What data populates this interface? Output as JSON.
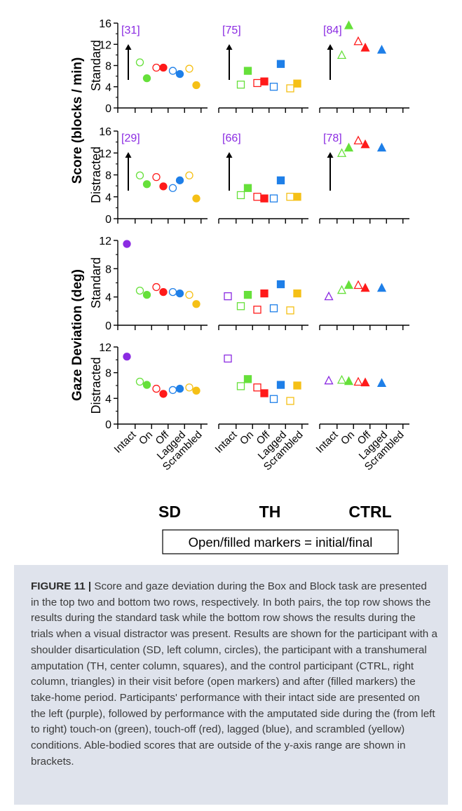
{
  "figure": {
    "left_title": "Score (blocks / min)",
    "left_title_lower": "Gaze Deviation (deg)",
    "group_labels": [
      "SD",
      "TH",
      "CTRL"
    ],
    "legend_text": "Open/filled markers = initial/final"
  },
  "caption": {
    "label": "FIGURE 11 |",
    "text": "Score and gaze deviation during the Box and Block task are presented in the top two and bottom two rows, respectively. In both pairs, the top row shows the results during the standard task while the bottom row shows the results during the trials when a visual distractor was present. Results are shown for the participant with a shoulder disarticulation (SD, left column, circles), the participant with a transhumeral amputation (TH, center column, squares), and the control participant (CTRL, right column, triangles) in their visit before (open markers) and after (filled markers) the take-home period. Participants' performance with their intact side are presented on the left (purple), followed by performance with the amputated side during the (from left to right) touch-on (green), touch-off (red), lagged (blue), and scrambled (yellow) conditions. Able-bodied scores that are outside of the y-axis range are shown in brackets."
  },
  "chart_data": {
    "type": "scatter",
    "categories": [
      "Intact",
      "On",
      "Off",
      "Lagged",
      "Scrambled"
    ],
    "groups": [
      {
        "name": "SD",
        "marker": "circle"
      },
      {
        "name": "TH",
        "marker": "square"
      },
      {
        "name": "CTRL",
        "marker": "triangle"
      }
    ],
    "colors": {
      "Intact": "#8b2be2",
      "On": "#66e03a",
      "Off": "#ff1a1a",
      "Lagged": "#1e7fe8",
      "Scrambled": "#f5c016"
    },
    "annotation_color": "#8b2be2",
    "fill_meaning": {
      "open": "initial",
      "filled": "final"
    },
    "panels": [
      {
        "ylabel": "Standard",
        "ylim": [
          0,
          16
        ],
        "yticks": [
          0,
          4,
          8,
          12,
          16
        ],
        "data": {
          "SD": {
            "Intact": {
              "annotation": "[31]"
            },
            "On": {
              "initial": 8.6,
              "final": 5.6
            },
            "Off": {
              "initial": 7.6,
              "final": 7.6
            },
            "Lagged": {
              "initial": 7.0,
              "final": 6.4
            },
            "Scrambled": {
              "initial": 7.4,
              "final": 4.3
            }
          },
          "TH": {
            "Intact": {
              "annotation": "[75]"
            },
            "On": {
              "initial": 4.4,
              "final": 7.0
            },
            "Off": {
              "initial": 4.7,
              "final": 5.0
            },
            "Lagged": {
              "initial": 4.0,
              "final": 8.3
            },
            "Scrambled": {
              "initial": 3.7,
              "final": 4.6
            }
          },
          "CTRL": {
            "Intact": {
              "annotation": "[84]"
            },
            "On": {
              "initial": 10.0,
              "final": 15.6
            },
            "Off": {
              "initial": 12.6,
              "final": 11.4
            },
            "Lagged": {
              "final": 11.0
            },
            "Scrambled": {}
          }
        }
      },
      {
        "ylabel": "Distracted",
        "ylim": [
          0,
          16
        ],
        "yticks": [
          0,
          4,
          8,
          12,
          16
        ],
        "data": {
          "SD": {
            "Intact": {
              "annotation": "[29]"
            },
            "On": {
              "initial": 7.9,
              "final": 6.3
            },
            "Off": {
              "initial": 7.6,
              "final": 5.9
            },
            "Lagged": {
              "initial": 5.6,
              "final": 7.0
            },
            "Scrambled": {
              "initial": 7.9,
              "final": 3.7
            }
          },
          "TH": {
            "Intact": {
              "annotation": "[66]"
            },
            "On": {
              "initial": 4.3,
              "final": 5.6
            },
            "Off": {
              "initial": 4.0,
              "final": 3.7
            },
            "Lagged": {
              "initial": 3.7,
              "final": 7.0
            },
            "Scrambled": {
              "initial": 4.0,
              "final": 4.0
            }
          },
          "CTRL": {
            "Intact": {
              "annotation": "[78]"
            },
            "On": {
              "initial": 12.0,
              "final": 13.0
            },
            "Off": {
              "initial": 14.3,
              "final": 13.6
            },
            "Lagged": {
              "final": 13.0
            },
            "Scrambled": {}
          }
        }
      },
      {
        "ylabel": "Standard",
        "ylim": [
          0,
          12
        ],
        "yticks": [
          0,
          4,
          8,
          12
        ],
        "data": {
          "SD": {
            "Intact": {
              "final": 11.5
            },
            "On": {
              "initial": 4.9,
              "final": 4.3
            },
            "Off": {
              "initial": 5.4,
              "final": 4.7
            },
            "Lagged": {
              "initial": 4.7,
              "final": 4.5
            },
            "Scrambled": {
              "initial": 4.3,
              "final": 3.0
            }
          },
          "TH": {
            "Intact": {
              "initial": 4.1
            },
            "On": {
              "initial": 2.7,
              "final": 4.3
            },
            "Off": {
              "initial": 2.2,
              "final": 4.5
            },
            "Lagged": {
              "initial": 2.4,
              "final": 5.8
            },
            "Scrambled": {
              "initial": 2.1,
              "final": 4.5
            }
          },
          "CTRL": {
            "Intact": {
              "initial": 4.1
            },
            "On": {
              "initial": 5.0,
              "final": 5.7
            },
            "Off": {
              "initial": 5.7,
              "final": 5.3
            },
            "Lagged": {
              "final": 5.3
            },
            "Scrambled": {}
          }
        }
      },
      {
        "ylabel": "Distracted",
        "ylim": [
          0,
          12
        ],
        "yticks": [
          0,
          4,
          8,
          12
        ],
        "data": {
          "SD": {
            "Intact": {
              "final": 10.5
            },
            "On": {
              "initial": 6.6,
              "final": 6.1
            },
            "Off": {
              "initial": 5.5,
              "final": 4.7
            },
            "Lagged": {
              "initial": 5.3,
              "final": 5.5
            },
            "Scrambled": {
              "initial": 5.7,
              "final": 5.2
            }
          },
          "TH": {
            "Intact": {
              "initial": 10.2
            },
            "On": {
              "initial": 5.9,
              "final": 7.0
            },
            "Off": {
              "initial": 5.7,
              "final": 4.8
            },
            "Lagged": {
              "initial": 3.9,
              "final": 6.1
            },
            "Scrambled": {
              "initial": 3.6,
              "final": 6.0
            }
          },
          "CTRL": {
            "Intact": {
              "initial": 6.8
            },
            "On": {
              "initial": 6.9,
              "final": 6.7
            },
            "Off": {
              "initial": 6.6,
              "final": 6.5
            },
            "Lagged": {
              "final": 6.4
            },
            "Scrambled": {}
          }
        }
      }
    ]
  }
}
